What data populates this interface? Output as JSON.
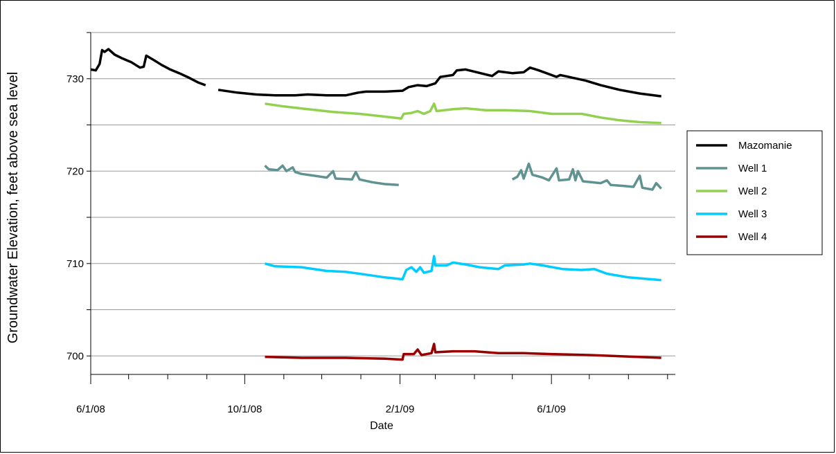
{
  "chart_data": {
    "type": "line",
    "title": "",
    "xlabel": "Date",
    "ylabel": "Groundwater Elevation, feet above sea level",
    "x_ticks": [
      "6/1/08",
      "10/1/08",
      "2/1/09",
      "6/1/09"
    ],
    "y_ticks": [
      "700",
      "710",
      "720",
      "730"
    ],
    "xlim": [
      "2008-06-01",
      "2009-08-31"
    ],
    "ylim": [
      698,
      735
    ],
    "grid": "horizontal",
    "legend_position": "right",
    "series": [
      {
        "name": "Mazomanie",
        "color": "#000000",
        "segments": [
          [
            [
              "2008-06-01",
              731.0
            ],
            [
              "2008-06-05",
              730.9
            ],
            [
              "2008-06-08",
              731.6
            ],
            [
              "2008-06-10",
              733.1
            ],
            [
              "2008-06-12",
              732.9
            ],
            [
              "2008-06-15",
              733.2
            ],
            [
              "2008-06-20",
              732.6
            ],
            [
              "2008-06-26",
              732.2
            ],
            [
              "2008-07-03",
              731.8
            ],
            [
              "2008-07-10",
              731.2
            ],
            [
              "2008-07-13",
              731.3
            ],
            [
              "2008-07-15",
              732.5
            ],
            [
              "2008-07-20",
              732.1
            ],
            [
              "2008-07-27",
              731.5
            ],
            [
              "2008-08-03",
              731.0
            ],
            [
              "2008-08-10",
              730.6
            ],
            [
              "2008-08-18",
              730.1
            ],
            [
              "2008-08-25",
              729.6
            ],
            [
              "2008-08-31",
              729.3
            ]
          ],
          [
            [
              "2008-09-10",
              728.8
            ],
            [
              "2008-09-25",
              728.5
            ],
            [
              "2008-10-10",
              728.3
            ],
            [
              "2008-10-25",
              728.2
            ],
            [
              "2008-11-10",
              728.2
            ],
            [
              "2008-11-20",
              728.3
            ],
            [
              "2008-12-05",
              728.2
            ],
            [
              "2008-12-20",
              728.2
            ],
            [
              "2008-12-30",
              728.5
            ],
            [
              "2009-01-05",
              728.6
            ],
            [
              "2009-01-20",
              728.6
            ],
            [
              "2009-02-03",
              728.7
            ],
            [
              "2009-02-08",
              729.1
            ],
            [
              "2009-02-15",
              729.3
            ],
            [
              "2009-02-22",
              729.2
            ],
            [
              "2009-03-01",
              729.5
            ],
            [
              "2009-03-05",
              730.2
            ],
            [
              "2009-03-10",
              730.3
            ],
            [
              "2009-03-15",
              730.4
            ],
            [
              "2009-03-18",
              730.9
            ],
            [
              "2009-03-25",
              731.0
            ],
            [
              "2009-04-03",
              730.7
            ],
            [
              "2009-04-15",
              730.3
            ],
            [
              "2009-04-20",
              730.8
            ],
            [
              "2009-05-01",
              730.6
            ],
            [
              "2009-05-10",
              730.7
            ],
            [
              "2009-05-15",
              731.2
            ],
            [
              "2009-05-22",
              730.9
            ],
            [
              "2009-06-01",
              730.4
            ],
            [
              "2009-06-05",
              730.2
            ],
            [
              "2009-06-08",
              730.4
            ],
            [
              "2009-06-18",
              730.1
            ],
            [
              "2009-06-28",
              729.8
            ],
            [
              "2009-07-10",
              729.3
            ],
            [
              "2009-07-25",
              728.8
            ],
            [
              "2009-08-10",
              728.4
            ],
            [
              "2009-08-27",
              728.1
            ]
          ]
        ]
      },
      {
        "name": "Well 1",
        "color": "#5F9392",
        "segments": [
          [
            [
              "2008-10-17",
              720.6
            ],
            [
              "2008-10-20",
              720.2
            ],
            [
              "2008-10-27",
              720.1
            ],
            [
              "2008-10-31",
              720.6
            ],
            [
              "2008-11-03",
              720.0
            ],
            [
              "2008-11-08",
              720.4
            ],
            [
              "2008-11-10",
              719.9
            ],
            [
              "2008-11-15",
              719.7
            ],
            [
              "2008-11-25",
              719.5
            ],
            [
              "2008-12-05",
              719.3
            ],
            [
              "2008-12-10",
              720.0
            ],
            [
              "2008-12-12",
              719.2
            ],
            [
              "2008-12-25",
              719.1
            ],
            [
              "2008-12-28",
              719.9
            ],
            [
              "2008-12-31",
              719.1
            ],
            [
              "2009-01-10",
              718.8
            ],
            [
              "2009-01-20",
              718.6
            ],
            [
              "2009-01-31",
              718.5
            ]
          ],
          [
            [
              "2009-05-01",
              719.1
            ],
            [
              "2009-05-05",
              719.4
            ],
            [
              "2009-05-08",
              720.1
            ],
            [
              "2009-05-10",
              719.2
            ],
            [
              "2009-05-14",
              720.8
            ],
            [
              "2009-05-17",
              719.6
            ],
            [
              "2009-05-25",
              719.3
            ],
            [
              "2009-05-30",
              719.0
            ],
            [
              "2009-06-05",
              720.3
            ],
            [
              "2009-06-07",
              719.0
            ],
            [
              "2009-06-15",
              719.1
            ],
            [
              "2009-06-18",
              720.2
            ],
            [
              "2009-06-20",
              719.0
            ],
            [
              "2009-06-22",
              720.0
            ],
            [
              "2009-06-26",
              718.9
            ],
            [
              "2009-07-10",
              718.7
            ],
            [
              "2009-07-15",
              719.0
            ],
            [
              "2009-07-18",
              718.5
            ],
            [
              "2009-07-28",
              718.4
            ],
            [
              "2009-08-05",
              718.3
            ],
            [
              "2009-08-10",
              719.5
            ],
            [
              "2009-08-12",
              718.2
            ],
            [
              "2009-08-20",
              718.0
            ],
            [
              "2009-08-23",
              718.7
            ],
            [
              "2009-08-27",
              718.1
            ]
          ]
        ]
      },
      {
        "name": "Well 2",
        "color": "#92D050",
        "segments": [
          [
            [
              "2008-10-17",
              727.3
            ],
            [
              "2008-11-01",
              727.0
            ],
            [
              "2008-11-20",
              726.7
            ],
            [
              "2008-12-10",
              726.4
            ],
            [
              "2008-12-31",
              726.2
            ],
            [
              "2009-01-20",
              725.9
            ],
            [
              "2009-02-02",
              725.7
            ],
            [
              "2009-02-04",
              726.2
            ],
            [
              "2009-02-10",
              726.3
            ],
            [
              "2009-02-15",
              726.5
            ],
            [
              "2009-02-20",
              726.2
            ],
            [
              "2009-02-25",
              726.5
            ],
            [
              "2009-02-28",
              727.3
            ],
            [
              "2009-03-02",
              726.5
            ],
            [
              "2009-03-15",
              726.7
            ],
            [
              "2009-03-25",
              726.8
            ],
            [
              "2009-04-10",
              726.6
            ],
            [
              "2009-04-25",
              726.6
            ],
            [
              "2009-05-15",
              726.5
            ],
            [
              "2009-06-01",
              726.2
            ],
            [
              "2009-06-25",
              726.2
            ],
            [
              "2009-07-10",
              725.8
            ],
            [
              "2009-07-25",
              725.5
            ],
            [
              "2009-08-10",
              725.3
            ],
            [
              "2009-08-27",
              725.2
            ]
          ]
        ]
      },
      {
        "name": "Well 3",
        "color": "#00CCFF",
        "segments": [
          [
            [
              "2008-10-17",
              710.0
            ],
            [
              "2008-10-25",
              709.7
            ],
            [
              "2008-11-15",
              709.6
            ],
            [
              "2008-12-05",
              709.2
            ],
            [
              "2008-12-20",
              709.1
            ],
            [
              "2009-01-05",
              708.8
            ],
            [
              "2009-01-20",
              708.5
            ],
            [
              "2009-02-03",
              708.3
            ],
            [
              "2009-02-06",
              709.3
            ],
            [
              "2009-02-10",
              709.6
            ],
            [
              "2009-02-14",
              709.1
            ],
            [
              "2009-02-17",
              709.6
            ],
            [
              "2009-02-20",
              709.0
            ],
            [
              "2009-02-26",
              709.2
            ],
            [
              "2009-02-28",
              710.8
            ],
            [
              "2009-03-01",
              709.8
            ],
            [
              "2009-03-10",
              709.8
            ],
            [
              "2009-03-15",
              710.1
            ],
            [
              "2009-03-25",
              709.9
            ],
            [
              "2009-04-05",
              709.6
            ],
            [
              "2009-04-20",
              709.4
            ],
            [
              "2009-04-25",
              709.8
            ],
            [
              "2009-05-10",
              709.9
            ],
            [
              "2009-05-15",
              710.0
            ],
            [
              "2009-05-25",
              709.8
            ],
            [
              "2009-06-10",
              709.4
            ],
            [
              "2009-06-25",
              709.3
            ],
            [
              "2009-07-05",
              709.4
            ],
            [
              "2009-07-15",
              708.9
            ],
            [
              "2009-08-01",
              708.5
            ],
            [
              "2009-08-27",
              708.2
            ]
          ]
        ]
      },
      {
        "name": "Well 4",
        "color": "#990000",
        "segments": [
          [
            [
              "2008-10-17",
              699.9
            ],
            [
              "2008-11-15",
              699.8
            ],
            [
              "2008-12-20",
              699.8
            ],
            [
              "2009-01-20",
              699.7
            ],
            [
              "2009-02-03",
              699.6
            ],
            [
              "2009-02-04",
              700.2
            ],
            [
              "2009-02-12",
              700.2
            ],
            [
              "2009-02-15",
              700.7
            ],
            [
              "2009-02-18",
              700.1
            ],
            [
              "2009-02-26",
              700.3
            ],
            [
              "2009-02-28",
              701.3
            ],
            [
              "2009-03-01",
              700.4
            ],
            [
              "2009-03-15",
              700.5
            ],
            [
              "2009-04-01",
              700.5
            ],
            [
              "2009-04-20",
              700.3
            ],
            [
              "2009-05-10",
              700.3
            ],
            [
              "2009-06-01",
              700.2
            ],
            [
              "2009-07-01",
              700.1
            ],
            [
              "2009-08-27",
              699.8
            ]
          ]
        ]
      }
    ]
  }
}
